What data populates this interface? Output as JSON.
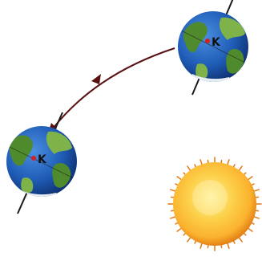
{
  "earth_top": {
    "label": "K"
  },
  "earth_left": {
    "label": "K"
  },
  "colors": {
    "ocean": "#1f5cb6",
    "ocean_dark": "#0e2f6e",
    "land": "#4f8a2d",
    "land_light": "#7fb34a",
    "axis": "#1a1a1a",
    "orbit_arrow": "#5a1010",
    "marker": "#d42020",
    "sun_core": "#fff3a0",
    "sun_mid": "#fbb22e",
    "sun_edge": "#e07812"
  },
  "icons": {
    "earth": "earth-globe-icon",
    "sun": "sun-icon",
    "arrow": "orbit-arrow-icon"
  }
}
